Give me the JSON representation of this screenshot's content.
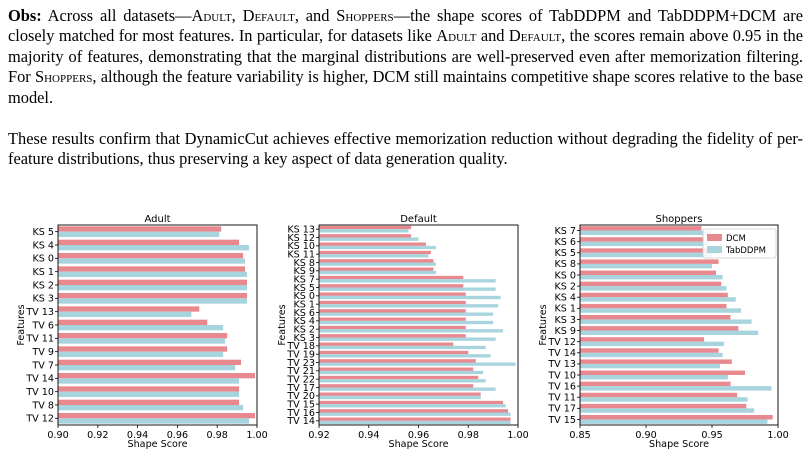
{
  "paragraph1": {
    "lead": "Obs:",
    "t1": " Across all datasets—",
    "adult": "Adult",
    "t2": ", ",
    "default": "Default",
    "t3": ", and ",
    "shoppers": "Shoppers",
    "t4": "—the shape scores of TabDDPM and TabDDPM+DCM are closely matched for most features. In particular, for datasets like ",
    "adult2": "Adult",
    "t5": " and ",
    "default2": "Default",
    "t6": ", the scores remain above 0.95 in the majority of features, demonstrating that the marginal distributions are well-preserved even after memorization filtering. For ",
    "shoppers2": "Shoppers",
    "t7": ", although the feature variability is higher, DCM still maintains competitive shape scores relative to the base model."
  },
  "paragraph2": "These results confirm that DynamicCut achieves effective memorization reduction without degrading the fidelity of per-feature distributions, thus preserving a key aspect of data generation quality.",
  "colors": {
    "dcm": "#e8888f",
    "tabddpm": "#a8d4de"
  },
  "chart_data": [
    {
      "type": "bar",
      "orientation": "horizontal",
      "title": "Adult",
      "xlabel": "Shape Score",
      "ylabel": "Features",
      "xlim": [
        0.9,
        1.0
      ],
      "xticks": [
        "0.90",
        "0.92",
        "0.94",
        "0.96",
        "0.98",
        "1.00"
      ],
      "grid": false,
      "categories": [
        "KS 5",
        "KS 4",
        "KS 0",
        "KS 1",
        "KS 2",
        "KS 3",
        "TV 13",
        "TV 6",
        "TV 11",
        "TV 9",
        "TV 7",
        "TV 14",
        "TV 10",
        "TV 8",
        "TV 12"
      ],
      "series": [
        {
          "name": "DCM",
          "values": [
            0.982,
            0.991,
            0.993,
            0.994,
            0.995,
            0.995,
            0.971,
            0.975,
            0.985,
            0.985,
            0.992,
            0.999,
            0.991,
            0.991,
            0.999
          ]
        },
        {
          "name": "TabDDPM",
          "values": [
            0.981,
            0.996,
            0.994,
            0.995,
            0.995,
            0.995,
            0.967,
            0.983,
            0.984,
            0.983,
            0.989,
            0.991,
            0.991,
            0.993,
            0.996
          ]
        }
      ]
    },
    {
      "type": "bar",
      "orientation": "horizontal",
      "title": "Default",
      "xlabel": "Shape Score",
      "ylabel": "Features",
      "xlim": [
        0.92,
        1.0
      ],
      "xticks": [
        "0.92",
        "0.94",
        "0.96",
        "0.98",
        "1.00"
      ],
      "grid": false,
      "categories": [
        "KS 13",
        "KS 12",
        "KS 10",
        "KS 11",
        "KS 8",
        "KS 9",
        "KS 7",
        "KS 5",
        "KS 0",
        "KS 1",
        "KS 6",
        "KS 4",
        "KS 2",
        "KS 3",
        "TV 18",
        "TV 19",
        "TV 23",
        "TV 21",
        "TV 22",
        "TV 17",
        "TV 20",
        "TV 15",
        "TV 16",
        "TV 14"
      ],
      "series": [
        {
          "name": "DCM",
          "values": [
            0.957,
            0.957,
            0.963,
            0.965,
            0.966,
            0.966,
            0.978,
            0.978,
            0.979,
            0.979,
            0.979,
            0.979,
            0.979,
            0.979,
            0.974,
            0.98,
            0.983,
            0.982,
            0.984,
            0.982,
            0.985,
            0.994,
            0.996,
            0.997
          ]
        },
        {
          "name": "TabDDPM",
          "values": [
            0.956,
            0.96,
            0.967,
            0.964,
            0.967,
            0.967,
            0.991,
            0.991,
            0.993,
            0.992,
            0.99,
            0.99,
            0.994,
            0.991,
            0.987,
            0.989,
            0.999,
            0.986,
            0.987,
            0.991,
            0.985,
            0.995,
            0.997,
            0.997
          ]
        }
      ]
    },
    {
      "type": "bar",
      "orientation": "horizontal",
      "title": "Shoppers",
      "xlabel": "Shape Score",
      "ylabel": "Features",
      "xlim": [
        0.85,
        1.0
      ],
      "xticks": [
        "0.85",
        "0.90",
        "0.95",
        "1.00"
      ],
      "grid": false,
      "legend": {
        "placement": "top-right",
        "entries": [
          "DCM",
          "TabDDPM"
        ]
      },
      "categories": [
        "KS 7",
        "KS 6",
        "KS 5",
        "KS 8",
        "KS 0",
        "KS 2",
        "KS 4",
        "KS 1",
        "KS 3",
        "KS 9",
        "TV 12",
        "TV 14",
        "TV 13",
        "TV 10",
        "TV 16",
        "TV 11",
        "TV 17",
        "TV 15"
      ],
      "series": [
        {
          "name": "DCM",
          "values": [
            0.942,
            0.944,
            0.948,
            0.955,
            0.953,
            0.957,
            0.962,
            0.961,
            0.964,
            0.97,
            0.944,
            0.955,
            0.965,
            0.975,
            0.964,
            0.969,
            0.976,
            0.996
          ]
        },
        {
          "name": "TabDDPM",
          "values": [
            0.949,
            0.948,
            0.95,
            0.95,
            0.958,
            0.961,
            0.968,
            0.972,
            0.98,
            0.985,
            0.959,
            0.958,
            0.956,
            0.962,
            0.995,
            0.977,
            0.982,
            0.992
          ]
        }
      ]
    }
  ]
}
